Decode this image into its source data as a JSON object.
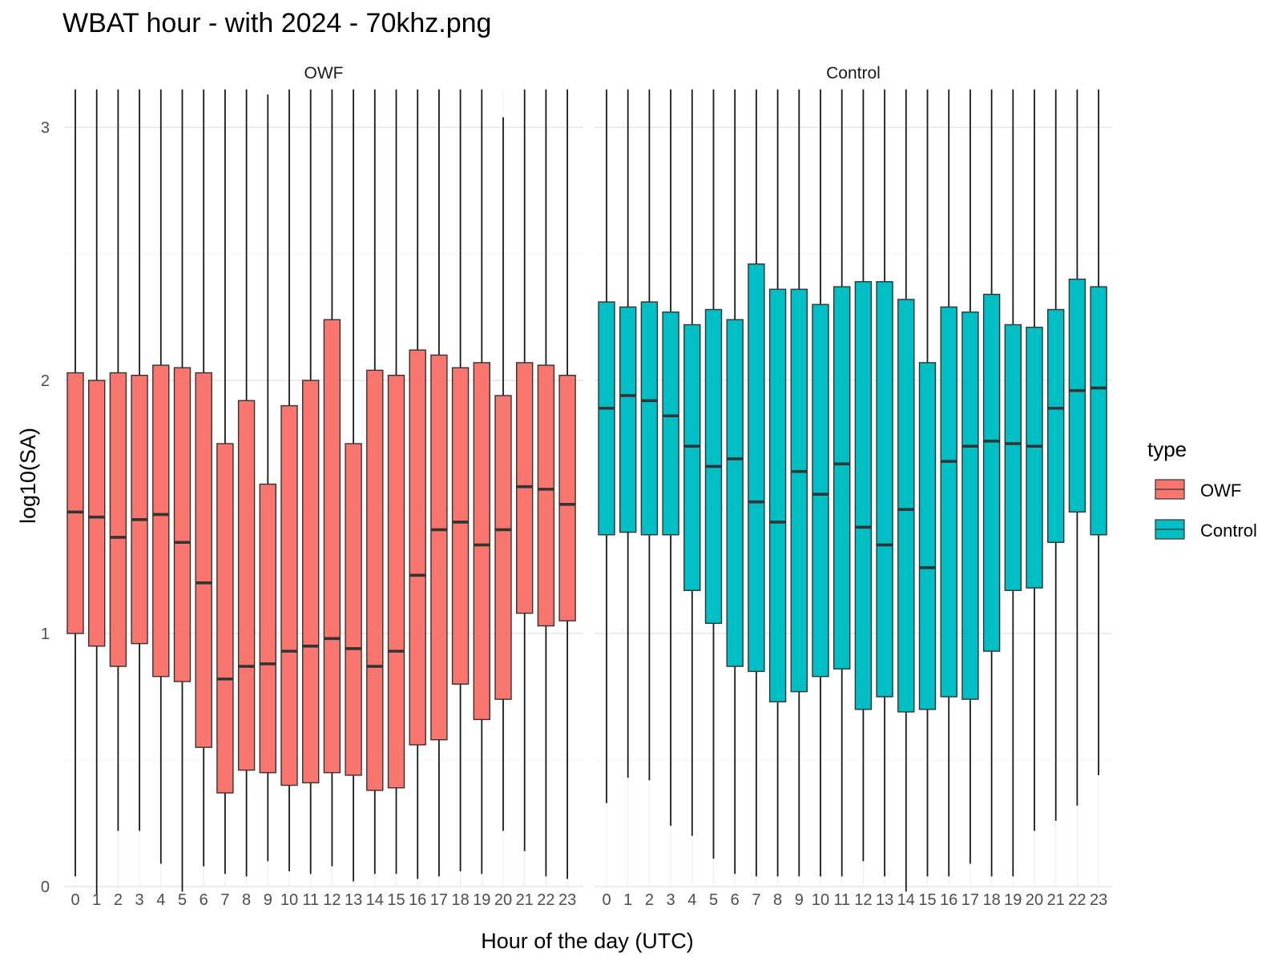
{
  "title": "WBAT hour - with 2024 - 70khz.png",
  "chart_data": {
    "type": "boxplot",
    "title": "WBAT hour - with 2024 - 70khz.png",
    "xlabel": "Hour of the day (UTC)",
    "ylabel": "log10(SA)",
    "ylim": [
      0,
      3.15
    ],
    "yticks": [
      0,
      1,
      2,
      3
    ],
    "categories": [
      "0",
      "1",
      "2",
      "3",
      "4",
      "5",
      "6",
      "7",
      "8",
      "9",
      "10",
      "11",
      "12",
      "13",
      "14",
      "15",
      "16",
      "17",
      "18",
      "19",
      "20",
      "21",
      "22",
      "23"
    ],
    "legend": {
      "title": "type",
      "position": "right",
      "entries": [
        "OWF",
        "Control"
      ]
    },
    "grid": true,
    "colors": {
      "OWF": "#F8766D",
      "Control": "#00BFC4"
    },
    "facets": [
      {
        "name": "OWF",
        "color": "#F8766D",
        "whisker_low": [
          0.04,
          -0.03,
          0.22,
          0.22,
          0.09,
          -0.02,
          0.08,
          0.05,
          0.04,
          0.1,
          0.06,
          0.05,
          0.08,
          0.02,
          0.05,
          0.05,
          0.03,
          0.04,
          0.06,
          0.05,
          0.22,
          0.14,
          0.04,
          0.03
        ],
        "q1": [
          1.0,
          0.95,
          0.87,
          0.96,
          0.83,
          0.81,
          0.55,
          0.37,
          0.46,
          0.45,
          0.4,
          0.41,
          0.45,
          0.44,
          0.38,
          0.39,
          0.56,
          0.58,
          0.8,
          0.66,
          0.74,
          1.08,
          1.03,
          1.05
        ],
        "median": [
          1.48,
          1.46,
          1.38,
          1.45,
          1.47,
          1.36,
          1.2,
          0.82,
          0.87,
          0.88,
          0.93,
          0.95,
          0.98,
          0.94,
          0.87,
          0.93,
          1.23,
          1.41,
          1.44,
          1.35,
          1.41,
          1.58,
          1.57,
          1.51
        ],
        "q3": [
          2.03,
          2.0,
          2.03,
          2.02,
          2.06,
          2.05,
          2.03,
          1.75,
          1.92,
          1.59,
          1.9,
          2.0,
          2.24,
          1.75,
          2.04,
          2.02,
          2.12,
          2.1,
          2.05,
          2.07,
          1.94,
          2.07,
          2.06,
          2.02
        ],
        "whisker_high": [
          3.15,
          3.15,
          3.15,
          3.15,
          3.15,
          3.15,
          3.15,
          3.15,
          3.15,
          3.13,
          3.15,
          3.15,
          3.15,
          3.15,
          3.15,
          3.15,
          3.15,
          3.15,
          3.15,
          3.15,
          3.04,
          3.15,
          3.15,
          3.15
        ]
      },
      {
        "name": "Control",
        "color": "#00BFC4",
        "whisker_low": [
          0.33,
          0.43,
          0.42,
          0.24,
          0.2,
          0.11,
          0.05,
          0.04,
          0.04,
          0.04,
          0.04,
          0.04,
          0.1,
          0.04,
          -0.02,
          0.04,
          0.04,
          0.09,
          0.04,
          0.04,
          0.22,
          0.26,
          0.32,
          0.44
        ],
        "q1": [
          1.39,
          1.4,
          1.39,
          1.39,
          1.17,
          1.04,
          0.87,
          0.85,
          0.73,
          0.77,
          0.83,
          0.86,
          0.7,
          0.75,
          0.69,
          0.7,
          0.75,
          0.74,
          0.93,
          1.17,
          1.18,
          1.36,
          1.48,
          1.39
        ],
        "median": [
          1.89,
          1.94,
          1.92,
          1.86,
          1.74,
          1.66,
          1.69,
          1.52,
          1.44,
          1.64,
          1.55,
          1.67,
          1.42,
          1.35,
          1.49,
          1.26,
          1.68,
          1.74,
          1.76,
          1.75,
          1.74,
          1.89,
          1.96,
          1.97
        ],
        "q3": [
          2.31,
          2.29,
          2.31,
          2.27,
          2.22,
          2.28,
          2.24,
          2.46,
          2.36,
          2.36,
          2.3,
          2.37,
          2.39,
          2.39,
          2.32,
          2.07,
          2.29,
          2.27,
          2.34,
          2.22,
          2.21,
          2.28,
          2.4,
          2.37
        ],
        "whisker_high": [
          3.15,
          3.15,
          3.15,
          3.15,
          3.15,
          3.15,
          3.15,
          3.15,
          3.15,
          3.15,
          3.15,
          3.15,
          3.15,
          3.15,
          3.15,
          3.15,
          3.15,
          3.15,
          3.15,
          3.15,
          3.15,
          3.15,
          3.15,
          3.15
        ]
      }
    ]
  }
}
